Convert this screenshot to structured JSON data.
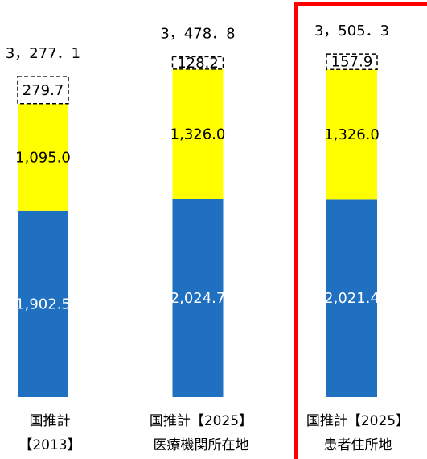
{
  "chart_data": {
    "type": "stacked_bar",
    "categories": [
      [
        "国推計",
        "【2013】"
      ],
      [
        "国推計【2025】",
        "医療機関所在地"
      ],
      [
        "国推計【2025】",
        "患者住所地"
      ]
    ],
    "series": [
      {
        "color": "#1f70c1",
        "values": [
          1902.5,
          2024.7,
          2021.4
        ],
        "value_labels": [
          "1,902.5",
          "2,024.7",
          "2,021.4"
        ],
        "label_color": "#ffffff"
      },
      {
        "color": "#ffff00",
        "values": [
          1095.0,
          1326.0,
          1326.0
        ],
        "value_labels": [
          "1,095.0",
          "1,326.0",
          "1,326.0"
        ],
        "label_color": "#000000"
      },
      {
        "color": "#ffffff",
        "dashed": true,
        "values": [
          279.7,
          128.2,
          157.9
        ],
        "value_labels": [
          "279.7",
          "128.2",
          "157.9"
        ],
        "label_color": "#000000"
      }
    ],
    "totals": [
      3277.1,
      3478.8,
      3505.3
    ],
    "total_labels": [
      "3，277．1",
      "3，478．8",
      "3，505．3"
    ],
    "ylim": [
      0,
      4000
    ],
    "highlight_index": 2,
    "highlight_color": "#ff0000"
  }
}
